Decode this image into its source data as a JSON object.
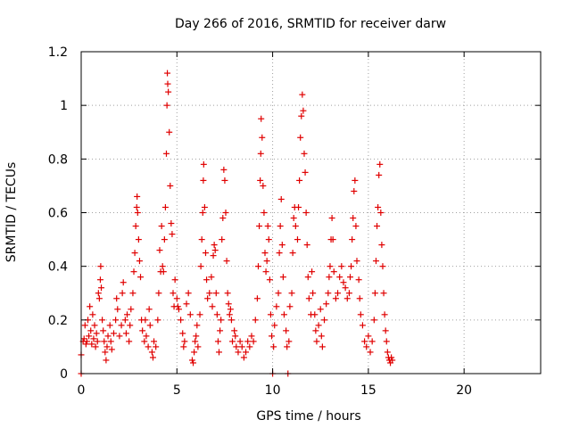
{
  "chart_data": {
    "type": "scatter",
    "title": "Day 266 of 2016, SRMTID for receiver darw",
    "xlabel": "GPS time / hours",
    "ylabel": "SRMTID / TECUs",
    "xlim": [
      0,
      24
    ],
    "ylim": [
      0,
      1.2
    ],
    "xticks": [
      0,
      5,
      10,
      15,
      20
    ],
    "xtick_labels": [
      "0",
      "5",
      "10",
      "15",
      "20"
    ],
    "yticks": [
      0,
      0.2,
      0.4,
      0.6,
      0.8,
      1.0,
      1.2
    ],
    "ytick_labels": [
      "0",
      "0.2",
      "0.4",
      "0.6",
      "0.8",
      "1",
      "1.2"
    ],
    "grid": true,
    "marker": "+",
    "series": [
      {
        "color": "#e00000",
        "points": [
          [
            0.0,
            0.0
          ],
          [
            0.0,
            0.07
          ],
          [
            0.1,
            0.12
          ],
          [
            0.15,
            0.13
          ],
          [
            0.2,
            0.18
          ],
          [
            0.25,
            0.11
          ],
          [
            0.3,
            0.12
          ],
          [
            0.35,
            0.2
          ],
          [
            0.4,
            0.14
          ],
          [
            0.45,
            0.25
          ],
          [
            0.5,
            0.16
          ],
          [
            0.55,
            0.11
          ],
          [
            0.6,
            0.22
          ],
          [
            0.65,
            0.13
          ],
          [
            0.7,
            0.18
          ],
          [
            0.75,
            0.1
          ],
          [
            0.8,
            0.15
          ],
          [
            0.85,
            0.12
          ],
          [
            0.9,
            0.3
          ],
          [
            0.95,
            0.28
          ],
          [
            1.0,
            0.35
          ],
          [
            1.02,
            0.4
          ],
          [
            1.05,
            0.32
          ],
          [
            1.1,
            0.2
          ],
          [
            1.15,
            0.16
          ],
          [
            1.2,
            0.12
          ],
          [
            1.25,
            0.08
          ],
          [
            1.3,
            0.05
          ],
          [
            1.35,
            0.1
          ],
          [
            1.4,
            0.14
          ],
          [
            1.5,
            0.18
          ],
          [
            1.55,
            0.12
          ],
          [
            1.6,
            0.09
          ],
          [
            1.7,
            0.15
          ],
          [
            1.8,
            0.2
          ],
          [
            1.85,
            0.28
          ],
          [
            1.9,
            0.24
          ],
          [
            2.0,
            0.14
          ],
          [
            2.1,
            0.18
          ],
          [
            2.15,
            0.3
          ],
          [
            2.2,
            0.34
          ],
          [
            2.3,
            0.2
          ],
          [
            2.35,
            0.15
          ],
          [
            2.4,
            0.22
          ],
          [
            2.5,
            0.12
          ],
          [
            2.55,
            0.18
          ],
          [
            2.6,
            0.24
          ],
          [
            2.7,
            0.3
          ],
          [
            2.75,
            0.38
          ],
          [
            2.8,
            0.45
          ],
          [
            2.85,
            0.55
          ],
          [
            2.9,
            0.62
          ],
          [
            2.92,
            0.66
          ],
          [
            2.95,
            0.6
          ],
          [
            3.0,
            0.5
          ],
          [
            3.05,
            0.42
          ],
          [
            3.1,
            0.36
          ],
          [
            3.15,
            0.2
          ],
          [
            3.2,
            0.16
          ],
          [
            3.3,
            0.12
          ],
          [
            3.35,
            0.2
          ],
          [
            3.4,
            0.14
          ],
          [
            3.5,
            0.1
          ],
          [
            3.55,
            0.24
          ],
          [
            3.6,
            0.18
          ],
          [
            3.7,
            0.08
          ],
          [
            3.75,
            0.06
          ],
          [
            3.8,
            0.12
          ],
          [
            3.9,
            0.1
          ],
          [
            4.0,
            0.2
          ],
          [
            4.05,
            0.3
          ],
          [
            4.1,
            0.46
          ],
          [
            4.15,
            0.38
          ],
          [
            4.2,
            0.55
          ],
          [
            4.25,
            0.4
          ],
          [
            4.3,
            0.38
          ],
          [
            4.35,
            0.5
          ],
          [
            4.4,
            0.62
          ],
          [
            4.45,
            0.82
          ],
          [
            4.48,
            1.0
          ],
          [
            4.5,
            1.12
          ],
          [
            4.52,
            1.08
          ],
          [
            4.55,
            1.05
          ],
          [
            4.6,
            0.9
          ],
          [
            4.65,
            0.7
          ],
          [
            4.7,
            0.56
          ],
          [
            4.75,
            0.52
          ],
          [
            4.8,
            0.3
          ],
          [
            4.85,
            0.25
          ],
          [
            4.9,
            0.35
          ],
          [
            5.0,
            0.28
          ],
          [
            5.05,
            0.25
          ],
          [
            5.1,
            0.24
          ],
          [
            5.2,
            0.2
          ],
          [
            5.3,
            0.15
          ],
          [
            5.35,
            0.1
          ],
          [
            5.4,
            0.12
          ],
          [
            5.5,
            0.26
          ],
          [
            5.6,
            0.3
          ],
          [
            5.7,
            0.22
          ],
          [
            5.8,
            0.05
          ],
          [
            5.85,
            0.04
          ],
          [
            5.9,
            0.08
          ],
          [
            5.95,
            0.12
          ],
          [
            6.0,
            0.14
          ],
          [
            6.05,
            0.18
          ],
          [
            6.1,
            0.1
          ],
          [
            6.2,
            0.22
          ],
          [
            6.25,
            0.4
          ],
          [
            6.3,
            0.5
          ],
          [
            6.35,
            0.6
          ],
          [
            6.38,
            0.72
          ],
          [
            6.4,
            0.78
          ],
          [
            6.45,
            0.62
          ],
          [
            6.5,
            0.45
          ],
          [
            6.55,
            0.35
          ],
          [
            6.6,
            0.28
          ],
          [
            6.7,
            0.3
          ],
          [
            6.8,
            0.36
          ],
          [
            6.85,
            0.25
          ],
          [
            6.9,
            0.44
          ],
          [
            6.95,
            0.48
          ],
          [
            7.0,
            0.46
          ],
          [
            7.05,
            0.3
          ],
          [
            7.1,
            0.22
          ],
          [
            7.15,
            0.12
          ],
          [
            7.2,
            0.08
          ],
          [
            7.25,
            0.16
          ],
          [
            7.3,
            0.2
          ],
          [
            7.35,
            0.5
          ],
          [
            7.4,
            0.58
          ],
          [
            7.45,
            0.76
          ],
          [
            7.5,
            0.72
          ],
          [
            7.55,
            0.6
          ],
          [
            7.6,
            0.42
          ],
          [
            7.65,
            0.3
          ],
          [
            7.7,
            0.26
          ],
          [
            7.75,
            0.22
          ],
          [
            7.8,
            0.24
          ],
          [
            7.85,
            0.2
          ],
          [
            7.9,
            0.12
          ],
          [
            8.0,
            0.16
          ],
          [
            8.05,
            0.14
          ],
          [
            8.1,
            0.1
          ],
          [
            8.2,
            0.08
          ],
          [
            8.3,
            0.12
          ],
          [
            8.4,
            0.1
          ],
          [
            8.5,
            0.06
          ],
          [
            8.6,
            0.08
          ],
          [
            8.7,
            0.12
          ],
          [
            8.8,
            0.1
          ],
          [
            8.9,
            0.14
          ],
          [
            9.0,
            0.12
          ],
          [
            9.1,
            0.2
          ],
          [
            9.2,
            0.28
          ],
          [
            9.25,
            0.4
          ],
          [
            9.3,
            0.55
          ],
          [
            9.35,
            0.72
          ],
          [
            9.38,
            0.82
          ],
          [
            9.4,
            0.95
          ],
          [
            9.45,
            0.88
          ],
          [
            9.5,
            0.7
          ],
          [
            9.55,
            0.6
          ],
          [
            9.6,
            0.45
          ],
          [
            9.65,
            0.38
          ],
          [
            9.7,
            0.42
          ],
          [
            9.75,
            0.55
          ],
          [
            9.8,
            0.5
          ],
          [
            9.85,
            0.35
          ],
          [
            9.9,
            0.22
          ],
          [
            9.95,
            0.14
          ],
          [
            10.0,
            0.0
          ],
          [
            10.05,
            0.1
          ],
          [
            10.1,
            0.18
          ],
          [
            10.2,
            0.25
          ],
          [
            10.3,
            0.3
          ],
          [
            10.35,
            0.45
          ],
          [
            10.4,
            0.55
          ],
          [
            10.45,
            0.65
          ],
          [
            10.5,
            0.48
          ],
          [
            10.55,
            0.36
          ],
          [
            10.6,
            0.22
          ],
          [
            10.7,
            0.16
          ],
          [
            10.75,
            0.1
          ],
          [
            10.8,
            0.0
          ],
          [
            10.85,
            0.12
          ],
          [
            10.9,
            0.25
          ],
          [
            11.0,
            0.3
          ],
          [
            11.05,
            0.45
          ],
          [
            11.1,
            0.58
          ],
          [
            11.15,
            0.62
          ],
          [
            11.2,
            0.55
          ],
          [
            11.3,
            0.5
          ],
          [
            11.35,
            0.62
          ],
          [
            11.4,
            0.72
          ],
          [
            11.45,
            0.88
          ],
          [
            11.5,
            0.96
          ],
          [
            11.55,
            1.04
          ],
          [
            11.6,
            0.98
          ],
          [
            11.65,
            0.82
          ],
          [
            11.7,
            0.75
          ],
          [
            11.75,
            0.6
          ],
          [
            11.8,
            0.48
          ],
          [
            11.85,
            0.36
          ],
          [
            11.9,
            0.28
          ],
          [
            12.0,
            0.22
          ],
          [
            12.05,
            0.38
          ],
          [
            12.1,
            0.3
          ],
          [
            12.2,
            0.22
          ],
          [
            12.25,
            0.16
          ],
          [
            12.3,
            0.12
          ],
          [
            12.4,
            0.18
          ],
          [
            12.5,
            0.24
          ],
          [
            12.55,
            0.14
          ],
          [
            12.6,
            0.1
          ],
          [
            12.7,
            0.2
          ],
          [
            12.8,
            0.26
          ],
          [
            12.9,
            0.3
          ],
          [
            12.95,
            0.36
          ],
          [
            13.0,
            0.4
          ],
          [
            13.05,
            0.5
          ],
          [
            13.1,
            0.58
          ],
          [
            13.15,
            0.5
          ],
          [
            13.2,
            0.38
          ],
          [
            13.3,
            0.28
          ],
          [
            13.4,
            0.3
          ],
          [
            13.5,
            0.36
          ],
          [
            13.6,
            0.4
          ],
          [
            13.7,
            0.34
          ],
          [
            13.8,
            0.32
          ],
          [
            13.9,
            0.28
          ],
          [
            14.0,
            0.3
          ],
          [
            14.05,
            0.36
          ],
          [
            14.1,
            0.4
          ],
          [
            14.15,
            0.5
          ],
          [
            14.2,
            0.58
          ],
          [
            14.25,
            0.68
          ],
          [
            14.3,
            0.72
          ],
          [
            14.35,
            0.55
          ],
          [
            14.4,
            0.42
          ],
          [
            14.5,
            0.35
          ],
          [
            14.55,
            0.28
          ],
          [
            14.6,
            0.22
          ],
          [
            14.7,
            0.18
          ],
          [
            14.8,
            0.12
          ],
          [
            14.9,
            0.1
          ],
          [
            15.0,
            0.14
          ],
          [
            15.1,
            0.08
          ],
          [
            15.2,
            0.12
          ],
          [
            15.3,
            0.2
          ],
          [
            15.35,
            0.3
          ],
          [
            15.4,
            0.42
          ],
          [
            15.45,
            0.55
          ],
          [
            15.5,
            0.62
          ],
          [
            15.55,
            0.74
          ],
          [
            15.6,
            0.78
          ],
          [
            15.65,
            0.6
          ],
          [
            15.7,
            0.48
          ],
          [
            15.75,
            0.4
          ],
          [
            15.8,
            0.3
          ],
          [
            15.85,
            0.22
          ],
          [
            15.9,
            0.16
          ],
          [
            15.95,
            0.12
          ],
          [
            16.0,
            0.08
          ],
          [
            16.05,
            0.06
          ],
          [
            16.1,
            0.05
          ],
          [
            16.15,
            0.04
          ],
          [
            16.2,
            0.06
          ],
          [
            16.25,
            0.05
          ]
        ]
      }
    ]
  }
}
